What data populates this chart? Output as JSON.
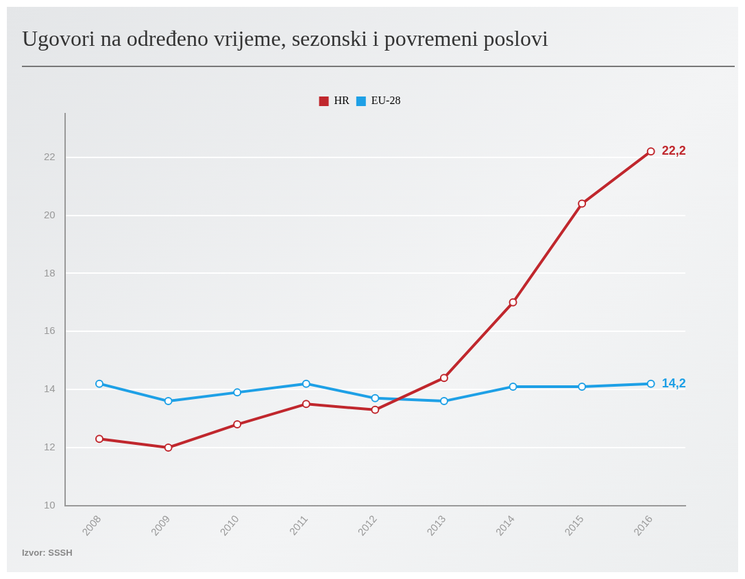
{
  "chart_data": {
    "type": "line",
    "title": "Ugovori na određeno vrijeme, sezonski i povremeni poslovi",
    "categories": [
      "2008",
      "2009",
      "2010",
      "2011",
      "2012",
      "2013",
      "2014",
      "2015",
      "2016"
    ],
    "series": [
      {
        "name": "HR",
        "color": "#c0272d",
        "values": [
          12.3,
          12.0,
          12.8,
          13.5,
          13.3,
          14.4,
          17.0,
          20.4,
          22.2
        ],
        "value_labels": [
          null,
          null,
          null,
          null,
          null,
          null,
          null,
          null,
          "22,2"
        ]
      },
      {
        "name": "EU-28",
        "color": "#1ea0e6",
        "values": [
          14.2,
          13.6,
          13.9,
          14.2,
          13.7,
          13.6,
          14.1,
          14.1,
          14.2
        ],
        "value_labels": [
          null,
          null,
          null,
          null,
          null,
          null,
          null,
          null,
          "14,2"
        ]
      }
    ],
    "ylim": [
      10,
      23.5
    ],
    "yticks": [
      10,
      12,
      14,
      16,
      18,
      20,
      22
    ],
    "grid": "y",
    "legend": "top",
    "marker": "circle",
    "line_style": "solid",
    "annotations": [
      "Izvor: SSSH"
    ]
  }
}
